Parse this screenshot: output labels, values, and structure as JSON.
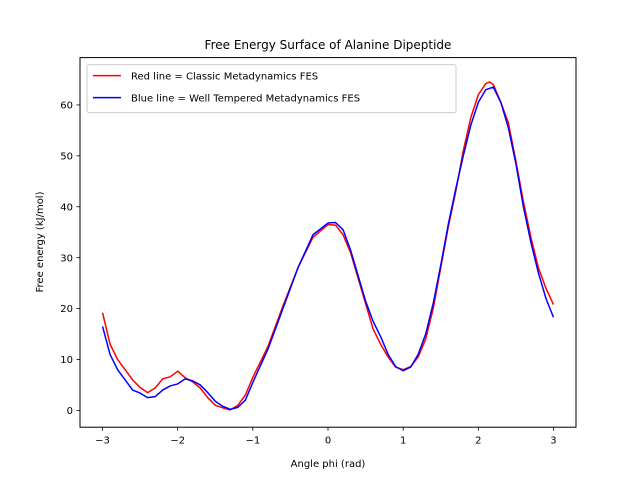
{
  "chart_data": {
    "type": "line",
    "title": "Free Energy Surface of Alanine Dipeptide",
    "xlabel": "Angle phi (rad)",
    "ylabel": "Free energy (kJ/mol)",
    "xlim": [
      -3.3,
      3.3
    ],
    "ylim": [
      -3.3,
      69.3
    ],
    "xticks": [
      -3,
      -2,
      -1,
      0,
      1,
      2,
      3
    ],
    "yticks": [
      0,
      10,
      20,
      30,
      40,
      50,
      60
    ],
    "grid": false,
    "legend_position": "top-left",
    "series": [
      {
        "name": "Red line = Classic Metadynamics FES",
        "color": "#ff0000",
        "points": [
          [
            -3.0,
            19.2
          ],
          [
            -2.9,
            13.0
          ],
          [
            -2.8,
            10.0
          ],
          [
            -2.7,
            8.0
          ],
          [
            -2.6,
            6.0
          ],
          [
            -2.5,
            4.5
          ],
          [
            -2.4,
            3.5
          ],
          [
            -2.3,
            4.4
          ],
          [
            -2.2,
            6.2
          ],
          [
            -2.1,
            6.6
          ],
          [
            -2.0,
            7.7
          ],
          [
            -1.9,
            6.4
          ],
          [
            -1.8,
            5.6
          ],
          [
            -1.7,
            4.4
          ],
          [
            -1.6,
            2.5
          ],
          [
            -1.5,
            1.0
          ],
          [
            -1.4,
            0.5
          ],
          [
            -1.3,
            0.1
          ],
          [
            -1.2,
            1.0
          ],
          [
            -1.1,
            3.0
          ],
          [
            -1.0,
            6.5
          ],
          [
            -0.8,
            12.5
          ],
          [
            -0.6,
            20.5
          ],
          [
            -0.4,
            28.0
          ],
          [
            -0.2,
            34.0
          ],
          [
            0.0,
            36.5
          ],
          [
            0.1,
            36.4
          ],
          [
            0.2,
            34.5
          ],
          [
            0.3,
            31.0
          ],
          [
            0.4,
            26.0
          ],
          [
            0.5,
            21.0
          ],
          [
            0.6,
            16.0
          ],
          [
            0.7,
            13.0
          ],
          [
            0.8,
            10.5
          ],
          [
            0.9,
            8.5
          ],
          [
            1.0,
            8.0
          ],
          [
            1.1,
            8.6
          ],
          [
            1.2,
            10.5
          ],
          [
            1.3,
            14.0
          ],
          [
            1.4,
            20.0
          ],
          [
            1.5,
            28.0
          ],
          [
            1.6,
            36.0
          ],
          [
            1.7,
            43.0
          ],
          [
            1.8,
            51.0
          ],
          [
            1.9,
            57.5
          ],
          [
            2.0,
            62.0
          ],
          [
            2.1,
            64.2
          ],
          [
            2.15,
            64.5
          ],
          [
            2.2,
            64.0
          ],
          [
            2.3,
            60.5
          ],
          [
            2.4,
            56.5
          ],
          [
            2.5,
            49.0
          ],
          [
            2.6,
            41.0
          ],
          [
            2.7,
            34.0
          ],
          [
            2.8,
            28.0
          ],
          [
            2.9,
            24.0
          ],
          [
            3.0,
            20.8
          ]
        ]
      },
      {
        "name": "Blue line = Well Tempered Metadynamics FES",
        "color": "#0000ff",
        "points": [
          [
            -3.0,
            16.5
          ],
          [
            -2.9,
            11.0
          ],
          [
            -2.8,
            8.0
          ],
          [
            -2.7,
            6.0
          ],
          [
            -2.6,
            4.0
          ],
          [
            -2.5,
            3.4
          ],
          [
            -2.4,
            2.5
          ],
          [
            -2.3,
            2.7
          ],
          [
            -2.2,
            4.0
          ],
          [
            -2.1,
            4.8
          ],
          [
            -2.0,
            5.2
          ],
          [
            -1.9,
            6.2
          ],
          [
            -1.8,
            5.8
          ],
          [
            -1.7,
            5.0
          ],
          [
            -1.6,
            3.5
          ],
          [
            -1.5,
            1.8
          ],
          [
            -1.4,
            0.8
          ],
          [
            -1.3,
            0.2
          ],
          [
            -1.2,
            0.6
          ],
          [
            -1.1,
            2.0
          ],
          [
            -1.0,
            5.5
          ],
          [
            -0.8,
            12.0
          ],
          [
            -0.6,
            20.0
          ],
          [
            -0.4,
            28.0
          ],
          [
            -0.2,
            34.5
          ],
          [
            0.0,
            36.8
          ],
          [
            0.1,
            36.9
          ],
          [
            0.2,
            35.5
          ],
          [
            0.3,
            31.5
          ],
          [
            0.4,
            26.5
          ],
          [
            0.5,
            21.5
          ],
          [
            0.6,
            17.5
          ],
          [
            0.7,
            14.5
          ],
          [
            0.8,
            11.0
          ],
          [
            0.9,
            8.6
          ],
          [
            1.0,
            7.8
          ],
          [
            1.1,
            8.5
          ],
          [
            1.2,
            11.0
          ],
          [
            1.3,
            15.0
          ],
          [
            1.4,
            21.0
          ],
          [
            1.5,
            28.5
          ],
          [
            1.6,
            36.5
          ],
          [
            1.7,
            43.5
          ],
          [
            1.8,
            50.0
          ],
          [
            1.9,
            56.0
          ],
          [
            2.0,
            60.5
          ],
          [
            2.1,
            63.0
          ],
          [
            2.2,
            63.5
          ],
          [
            2.3,
            60.5
          ],
          [
            2.4,
            55.5
          ],
          [
            2.5,
            48.5
          ],
          [
            2.6,
            40.0
          ],
          [
            2.7,
            33.0
          ],
          [
            2.8,
            27.0
          ],
          [
            2.9,
            22.0
          ],
          [
            3.0,
            18.3
          ]
        ]
      }
    ]
  }
}
